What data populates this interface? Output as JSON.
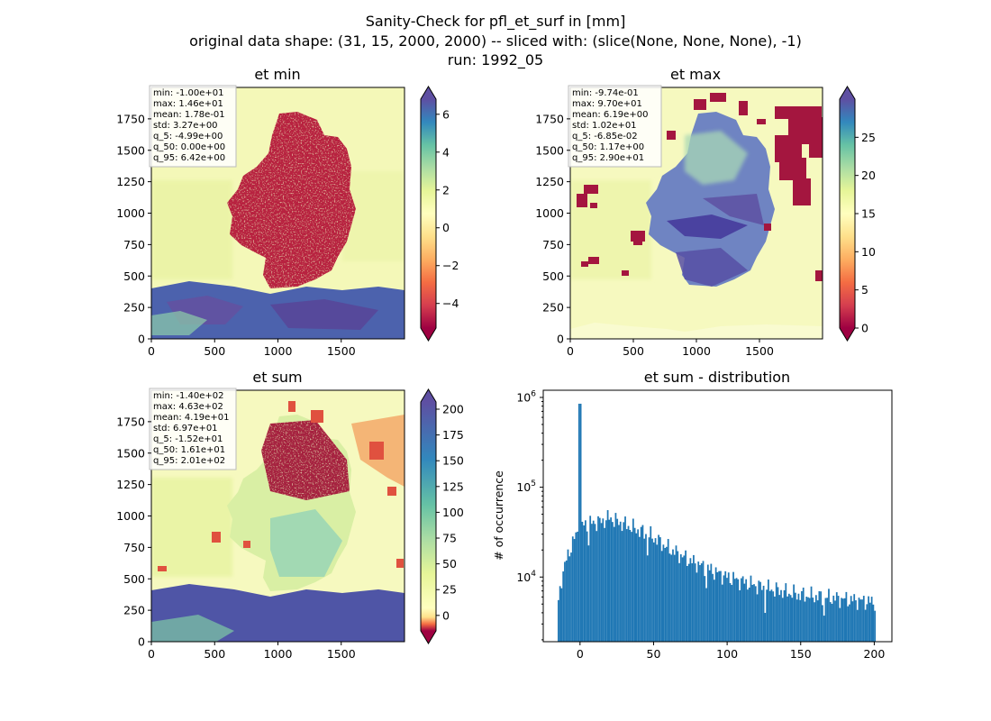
{
  "suptitle": {
    "line1": "Sanity-Check for pfl_et_surf in [mm]",
    "line2": "original data shape: (31, 15, 2000, 2000) -- sliced with: (slice(None, None, None), -1)",
    "line3": "run: 1992_05"
  },
  "chart_data": [
    {
      "type": "heatmap",
      "title": "et min",
      "xlim": [
        0,
        2000
      ],
      "ylim": [
        0,
        2000
      ],
      "xticks": [
        "0",
        "500",
        "1000",
        "1500"
      ],
      "yticks": [
        "0",
        "250",
        "500",
        "750",
        "1000",
        "1250",
        "1500",
        "1750"
      ],
      "colormap": "Spectral",
      "colorbar": {
        "vmin": -5.3,
        "vmax": 6.8,
        "ticks": [
          "−4",
          "−2",
          "0",
          "2",
          "4",
          "6"
        ],
        "tick_values": [
          -4,
          -2,
          0,
          2,
          4,
          6
        ],
        "extend": "both"
      },
      "stats": [
        "min: -1.00e+01",
        "max: 1.46e+01",
        "mean: 1.78e-01",
        "std: 3.27e+00",
        "q_5: -4.99e+00",
        "q_50: 0.00e+00",
        "q_95: 6.42e+00"
      ]
    },
    {
      "type": "heatmap",
      "title": "et max",
      "xlim": [
        0,
        2000
      ],
      "ylim": [
        0,
        2000
      ],
      "xticks": [
        "0",
        "500",
        "1000",
        "1500"
      ],
      "yticks": [
        "0",
        "250",
        "500",
        "750",
        "1000",
        "1250",
        "1500",
        "1750"
      ],
      "colormap": "Spectral",
      "colorbar": {
        "vmin": 0,
        "vmax": 30,
        "ticks": [
          "0",
          "5",
          "10",
          "15",
          "20",
          "25"
        ],
        "tick_values": [
          0,
          5,
          10,
          15,
          20,
          25
        ],
        "extend": "both"
      },
      "stats": [
        "min: -9.74e-01",
        "max: 9.70e+01",
        "mean: 6.19e+00",
        "std: 1.02e+01",
        "q_5: -6.85e-02",
        "q_50: 1.17e+00",
        "q_95: 2.90e+01"
      ]
    },
    {
      "type": "heatmap",
      "title": "et sum",
      "xlim": [
        0,
        2000
      ],
      "ylim": [
        0,
        2000
      ],
      "xticks": [
        "0",
        "500",
        "1000",
        "1500"
      ],
      "yticks": [
        "0",
        "250",
        "500",
        "750",
        "1000",
        "1250",
        "1500",
        "1750"
      ],
      "colormap": "Spectral",
      "colorbar": {
        "vmin": -15,
        "vmax": 207,
        "ticks": [
          "0",
          "25",
          "50",
          "75",
          "100",
          "125",
          "150",
          "175",
          "200"
        ],
        "tick_values": [
          0,
          25,
          50,
          75,
          100,
          125,
          150,
          175,
          200
        ],
        "extend": "both"
      },
      "stats": [
        "min: -1.40e+02",
        "max: 4.63e+02",
        "mean: 4.19e+01",
        "std: 6.97e+01",
        "q_5: -1.52e+01",
        "q_50: 1.61e+01",
        "q_95: 2.01e+02"
      ]
    },
    {
      "type": "bar",
      "title": "et sum - distribution",
      "ylabel": "# of occurrence",
      "yscale": "log",
      "xlim": [
        -25,
        212
      ],
      "ylim_log10": [
        3.28,
        6.08
      ],
      "xticks": [
        "0",
        "50",
        "100",
        "150",
        "200"
      ],
      "xtick_values": [
        0,
        50,
        100,
        150,
        200
      ],
      "ytick_values": [
        4,
        5,
        6
      ],
      "bar_color": "#1f77b4",
      "peak": {
        "x": 0,
        "log10_count": 5.93
      },
      "bins": {
        "x_start": -15.2,
        "x_end": 201,
        "count": 200
      },
      "profile_log10": [
        [
          -15.2,
          3.62
        ],
        [
          -13,
          3.95
        ],
        [
          -10,
          4.15
        ],
        [
          -7,
          4.3
        ],
        [
          -4,
          4.42
        ],
        [
          -1,
          4.52
        ],
        [
          0,
          4.53
        ],
        [
          2,
          4.58
        ],
        [
          8,
          4.6
        ],
        [
          15,
          4.62
        ],
        [
          20,
          4.66
        ],
        [
          25,
          4.62
        ],
        [
          40,
          4.52
        ],
        [
          50,
          4.44
        ],
        [
          60,
          4.32
        ],
        [
          75,
          4.18
        ],
        [
          90,
          4.07
        ],
        [
          100,
          4.0
        ],
        [
          125,
          3.88
        ],
        [
          150,
          3.8
        ],
        [
          175,
          3.76
        ],
        [
          200,
          3.72
        ]
      ]
    }
  ]
}
